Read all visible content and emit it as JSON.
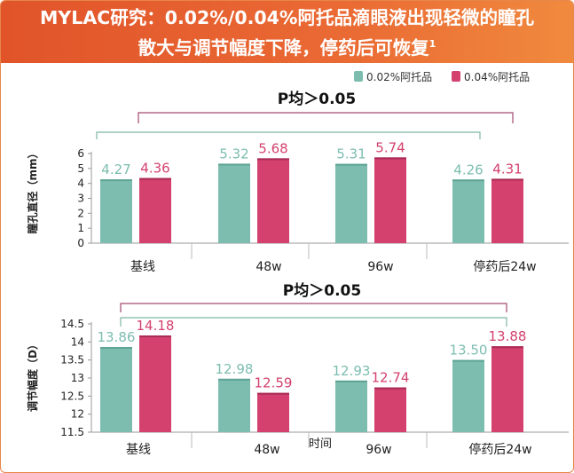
{
  "title_line1": "MYLAC研究：0.02%/0.04%阿托品滴眼液出现轻微的瞳孔",
  "title_line2": "散大与调节幅度下降，停药后可恢复",
  "title_sup": "1",
  "legend": [
    {
      "name": "0.02%阿托品",
      "color": "#7dbdb0"
    },
    {
      "name": "0.04%阿托品",
      "color": "#d4416e"
    }
  ],
  "chart_data": [
    {
      "type": "bar",
      "ylabel": "瞳孔直径（mm）",
      "xlabel": "",
      "categories": [
        "基线",
        "48w",
        "96w",
        "停药后24w"
      ],
      "series": [
        {
          "name": "0.02%阿托品",
          "values": [
            4.27,
            5.32,
            5.31,
            4.26
          ],
          "labels": [
            "4.27",
            "5.32",
            "5.31",
            "4.26"
          ]
        },
        {
          "name": "0.04%阿托品",
          "values": [
            4.36,
            5.68,
            5.74,
            4.31
          ],
          "labels": [
            "4.36",
            "5.68",
            "5.74",
            "4.31"
          ]
        }
      ],
      "ylim": [
        0,
        6
      ],
      "yticks": [
        "0",
        "1",
        "2",
        "3",
        "4",
        "5",
        "6"
      ],
      "annotation": "P均＞0.05"
    },
    {
      "type": "bar",
      "ylabel": "调节幅度（D）",
      "xlabel": "时间",
      "categories": [
        "基线",
        "48w",
        "96w",
        "停药后24w"
      ],
      "series": [
        {
          "name": "0.02%阿托品",
          "values": [
            13.86,
            12.98,
            12.93,
            13.5
          ],
          "labels": [
            "13.86",
            "12.98",
            "12.93",
            "13.50"
          ]
        },
        {
          "name": "0.04%阿托品",
          "values": [
            14.18,
            12.59,
            12.74,
            13.88
          ],
          "labels": [
            "14.18",
            "12.59",
            "12.74",
            "13.88"
          ]
        }
      ],
      "ylim": [
        11.5,
        14.5
      ],
      "yticks": [
        "11.5",
        "12",
        "12.5",
        "13",
        "13.5",
        "14",
        "14.5"
      ],
      "annotation": "P均＞0.05"
    }
  ]
}
